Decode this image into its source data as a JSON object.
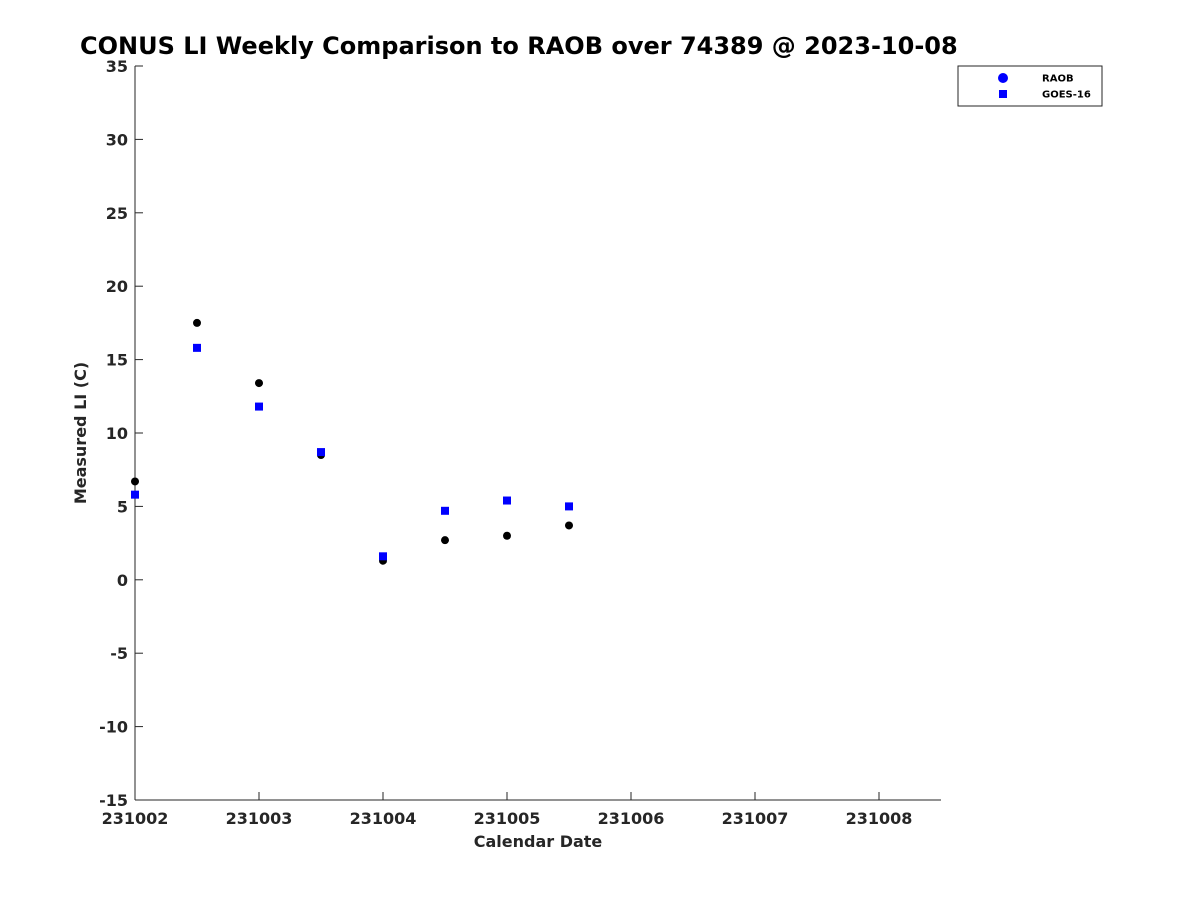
{
  "chart_data": {
    "type": "scatter",
    "title": "CONUS LI Weekly Comparison to RAOB over 74389 @ 2023-10-08",
    "xlabel": "Calendar Date",
    "ylabel": "Measured LI (C)",
    "xlim": [
      "231002",
      "231008.5"
    ],
    "ylim": [
      -15,
      35
    ],
    "x_ticks": [
      "231002",
      "231003",
      "231004",
      "231005",
      "231006",
      "231007",
      "231008"
    ],
    "y_ticks": [
      35,
      30,
      25,
      20,
      15,
      10,
      5,
      0,
      -5,
      -10,
      -15
    ],
    "grid": false,
    "legend_position": "top-right, outside plot area",
    "series": [
      {
        "name": "RAOB",
        "marker": "circle",
        "color": "#000000",
        "legend_color": "#0000ff",
        "x": [
          231002.0,
          231002.5,
          231003.0,
          231003.5,
          231004.0,
          231004.5,
          231005.0,
          231005.5
        ],
        "y": [
          6.7,
          17.5,
          13.4,
          8.5,
          1.3,
          2.7,
          3.0,
          3.7
        ]
      },
      {
        "name": "GOES-16",
        "marker": "square",
        "color": "#0000ff",
        "x": [
          231002.0,
          231002.5,
          231003.0,
          231003.5,
          231004.0,
          231004.5,
          231005.0,
          231005.5
        ],
        "y": [
          5.8,
          15.8,
          11.8,
          8.7,
          1.6,
          4.7,
          5.4,
          5.0
        ]
      }
    ]
  }
}
